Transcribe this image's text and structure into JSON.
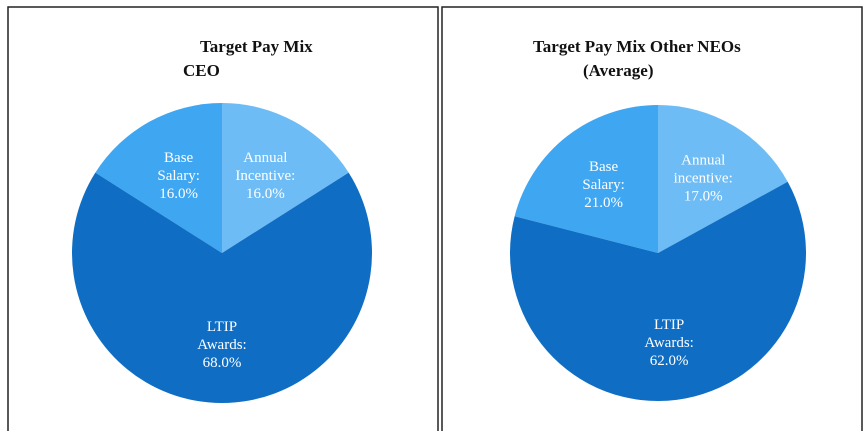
{
  "chart_data": [
    {
      "type": "pie",
      "title": "Target Pay Mix",
      "subtitle": "CEO",
      "categories": [
        "Base Salary:",
        "Annual Incentive:",
        "LTIP Awards:"
      ],
      "values": [
        16,
        16,
        68
      ],
      "value_labels": [
        "16.0%",
        "16.0%",
        "68.0%"
      ],
      "colors": [
        "#3fa6f2",
        "#6ebcf5",
        "#0f6ec4"
      ]
    },
    {
      "type": "pie",
      "title": "Target Pay Mix Other NEOs",
      "subtitle": "(Average)",
      "categories": [
        "Base Salary:",
        "Annual incentive:",
        "LTIP Awards:"
      ],
      "values": [
        21,
        17,
        62
      ],
      "value_labels": [
        "21.0%",
        "17.0%",
        "62.0%"
      ],
      "colors": [
        "#3fa6f2",
        "#6ebcf5",
        "#0f6ec4"
      ]
    }
  ]
}
